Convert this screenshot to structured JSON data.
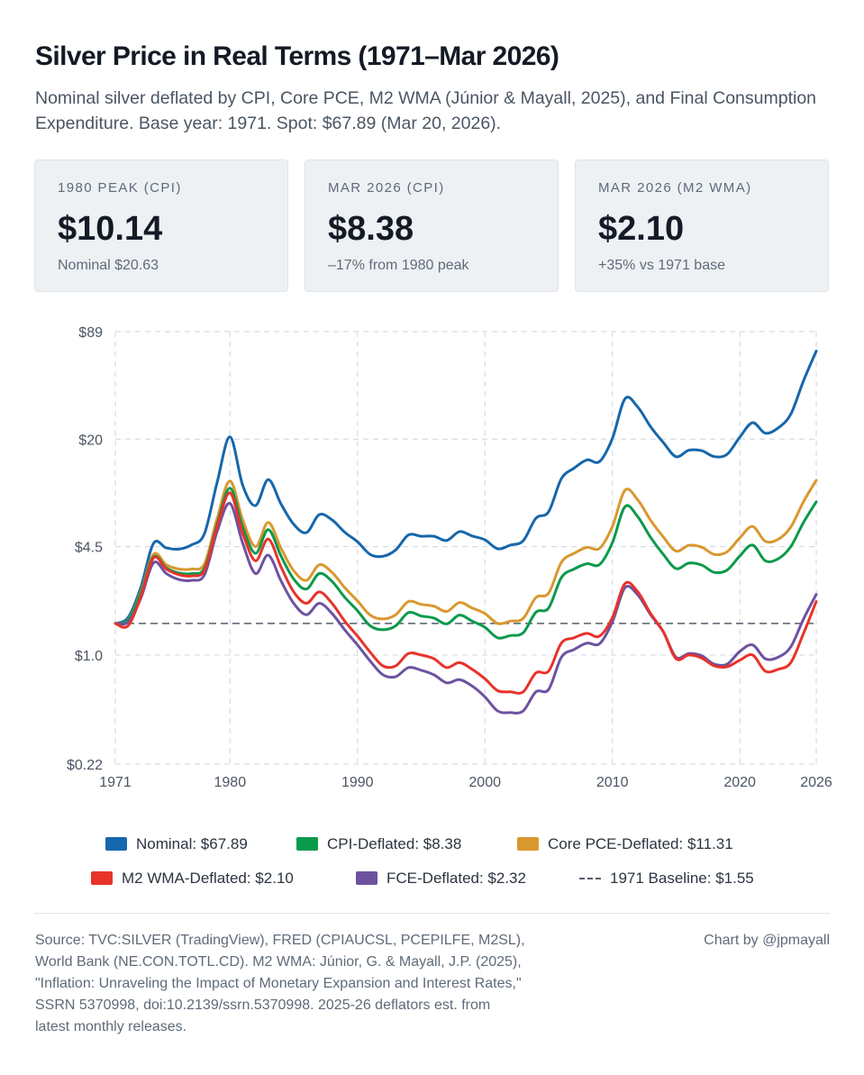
{
  "header": {
    "title": "Silver Price in Real Terms (1971–Mar 2026)",
    "subtitle": "Nominal silver deflated by CPI, Core PCE, M2 WMA (Júnior & Mayall, 2025), and Final Consumption Expenditure. Base year: 1971. Spot: $67.89 (Mar 20, 2026)."
  },
  "cards": [
    {
      "label": "1980 PEAK (CPI)",
      "value": "$10.14",
      "note": "Nominal $20.63"
    },
    {
      "label": "MAR 2026 (CPI)",
      "value": "$8.38",
      "note": "–17% from 1980 peak"
    },
    {
      "label": "MAR 2026 (M2 WMA)",
      "value": "$2.10",
      "note": "+35% vs 1971 base"
    }
  ],
  "colors": {
    "nominal": "#1667ab",
    "cpi": "#0b9a4b",
    "core_pce": "#d9982e",
    "m2_wma": "#e8332a",
    "fce": "#6d52a0",
    "baseline": "#555e69",
    "grid": "#d6dde5"
  },
  "chart_data": {
    "type": "line",
    "title": "Silver Price in Real Terms (1971–Mar 2026)",
    "xlabel": "",
    "ylabel": "",
    "y_scale": "log",
    "ylim": [
      0.22,
      89
    ],
    "xlim": [
      1971,
      2026
    ],
    "y_ticks": [
      0.22,
      1.0,
      4.5,
      20,
      89
    ],
    "y_tick_labels": [
      "$0.22",
      "$1.0",
      "$4.5",
      "$20",
      "$89"
    ],
    "x_ticks": [
      1971,
      1980,
      1990,
      2000,
      2010,
      2020,
      2026
    ],
    "x_tick_labels": [
      "1971",
      "1980",
      "1990",
      "2000",
      "2010",
      "2020",
      "2026"
    ],
    "grid": true,
    "legend_position": "bottom",
    "baseline": {
      "name": "1971 Baseline",
      "value": 1.55,
      "label": "1971 Baseline: $1.55"
    },
    "series": [
      {
        "name": "Nominal",
        "label": "Nominal: $67.89",
        "color_key": "nominal",
        "x": [
          1971,
          1972,
          1973,
          1974,
          1975,
          1976,
          1977,
          1978,
          1979,
          1980,
          1981,
          1982,
          1983,
          1984,
          1985,
          1986,
          1987,
          1988,
          1989,
          1990,
          1991,
          1992,
          1993,
          1994,
          1995,
          1996,
          1997,
          1998,
          1999,
          2000,
          2001,
          2002,
          2003,
          2004,
          2005,
          2006,
          2007,
          2008,
          2009,
          2010,
          2011,
          2012,
          2013,
          2014,
          2015,
          2016,
          2017,
          2018,
          2019,
          2020,
          2021,
          2022,
          2023,
          2024,
          2025,
          2026
        ],
        "y": [
          1.55,
          1.68,
          2.56,
          4.71,
          4.42,
          4.35,
          4.62,
          5.4,
          11.1,
          20.63,
          10.5,
          7.95,
          11.4,
          8.14,
          6.14,
          5.47,
          7.01,
          6.53,
          5.5,
          4.82,
          4.04,
          3.94,
          4.3,
          5.29,
          5.2,
          5.2,
          4.9,
          5.54,
          5.22,
          4.95,
          4.37,
          4.6,
          4.88,
          6.67,
          7.31,
          11.55,
          13.38,
          14.99,
          14.67,
          20.19,
          35.12,
          31.15,
          23.79,
          19.08,
          15.68,
          17.14,
          17.05,
          15.71,
          16.21,
          20.55,
          25.14,
          21.73,
          23.35,
          28.27,
          45.0,
          67.89
        ]
      },
      {
        "name": "CPI-Deflated",
        "label": "CPI-Deflated: $8.38",
        "color_key": "cpi",
        "x": [
          1971,
          1972,
          1973,
          1974,
          1975,
          1976,
          1977,
          1978,
          1979,
          1980,
          1981,
          1982,
          1983,
          1984,
          1985,
          1986,
          1987,
          1988,
          1989,
          1990,
          1991,
          1992,
          1993,
          1994,
          1995,
          1996,
          1997,
          1998,
          1999,
          2000,
          2001,
          2002,
          2003,
          2004,
          2005,
          2006,
          2007,
          2008,
          2009,
          2010,
          2011,
          2012,
          2013,
          2014,
          2015,
          2016,
          2017,
          2018,
          2019,
          2020,
          2021,
          2022,
          2023,
          2024,
          2025,
          2026
        ],
        "y": [
          1.55,
          1.62,
          2.35,
          3.9,
          3.35,
          3.12,
          3.1,
          3.35,
          6.2,
          10.14,
          5.9,
          4.1,
          5.7,
          3.95,
          2.87,
          2.5,
          3.1,
          2.78,
          2.23,
          1.85,
          1.5,
          1.42,
          1.5,
          1.8,
          1.72,
          1.67,
          1.54,
          1.74,
          1.6,
          1.47,
          1.27,
          1.31,
          1.36,
          1.81,
          1.92,
          2.93,
          3.3,
          3.55,
          3.51,
          4.75,
          7.85,
          6.8,
          5.12,
          4.04,
          3.32,
          3.58,
          3.49,
          3.15,
          3.25,
          3.95,
          4.6,
          3.7,
          3.8,
          4.5,
          6.3,
          8.38
        ]
      },
      {
        "name": "Core PCE-Deflated",
        "label": "Core PCE-Deflated: $11.31",
        "color_key": "core_pce",
        "x": [
          1971,
          1972,
          1973,
          1974,
          1975,
          1976,
          1977,
          1978,
          1979,
          1980,
          1981,
          1982,
          1983,
          1984,
          1985,
          1986,
          1987,
          1988,
          1989,
          1990,
          1991,
          1992,
          1993,
          1994,
          1995,
          1996,
          1997,
          1998,
          1999,
          2000,
          2001,
          2002,
          2003,
          2004,
          2005,
          2006,
          2007,
          2008,
          2009,
          2010,
          2011,
          2012,
          2013,
          2014,
          2015,
          2016,
          2017,
          2018,
          2019,
          2020,
          2021,
          2022,
          2023,
          2024,
          2025,
          2026
        ],
        "y": [
          1.55,
          1.63,
          2.4,
          4.05,
          3.5,
          3.3,
          3.3,
          3.55,
          6.7,
          11.2,
          6.5,
          4.5,
          6.3,
          4.4,
          3.22,
          2.82,
          3.5,
          3.15,
          2.55,
          2.12,
          1.74,
          1.65,
          1.75,
          2.1,
          2.02,
          1.97,
          1.83,
          2.07,
          1.92,
          1.78,
          1.55,
          1.6,
          1.66,
          2.22,
          2.36,
          3.62,
          4.1,
          4.45,
          4.4,
          5.95,
          9.85,
          8.6,
          6.5,
          5.14,
          4.23,
          4.58,
          4.47,
          4.04,
          4.19,
          5.08,
          5.95,
          4.85,
          4.98,
          5.9,
          8.4,
          11.31
        ]
      },
      {
        "name": "M2 WMA-Deflated",
        "label": "M2 WMA-Deflated: $2.10",
        "color_key": "m2_wma",
        "x": [
          1971,
          1972,
          1973,
          1974,
          1975,
          1976,
          1977,
          1978,
          1979,
          1980,
          1981,
          1982,
          1983,
          1984,
          1985,
          1986,
          1987,
          1988,
          1989,
          1990,
          1991,
          1992,
          1993,
          1994,
          1995,
          1996,
          1997,
          1998,
          1999,
          2000,
          2001,
          2002,
          2003,
          2004,
          2005,
          2006,
          2007,
          2008,
          2009,
          2010,
          2011,
          2012,
          2013,
          2014,
          2015,
          2016,
          2017,
          2018,
          2019,
          2020,
          2021,
          2022,
          2023,
          2024,
          2025,
          2026
        ],
        "y": [
          1.55,
          1.5,
          2.25,
          3.85,
          3.3,
          3.05,
          3.0,
          3.25,
          6.0,
          9.5,
          5.4,
          3.7,
          5.0,
          3.4,
          2.4,
          2.05,
          2.4,
          2.05,
          1.6,
          1.3,
          1.04,
          0.86,
          0.86,
          1.02,
          1.0,
          0.95,
          0.84,
          0.9,
          0.82,
          0.72,
          0.61,
          0.6,
          0.6,
          0.78,
          0.8,
          1.18,
          1.27,
          1.35,
          1.3,
          1.68,
          2.7,
          2.4,
          1.78,
          1.38,
          0.95,
          1.0,
          0.96,
          0.86,
          0.85,
          0.93,
          1.0,
          0.8,
          0.82,
          0.9,
          1.35,
          2.1
        ]
      },
      {
        "name": "FCE-Deflated",
        "label": "FCE-Deflated: $2.32",
        "color_key": "fce",
        "x": [
          1971,
          1972,
          1973,
          1974,
          1975,
          1976,
          1977,
          1978,
          1979,
          1980,
          1981,
          1982,
          1983,
          1984,
          1985,
          1986,
          1987,
          1988,
          1989,
          1990,
          1991,
          1992,
          1993,
          1994,
          1995,
          1996,
          1997,
          1998,
          1999,
          2000,
          2001,
          2002,
          2003,
          2004,
          2005,
          2006,
          2007,
          2008,
          2009,
          2010,
          2011,
          2012,
          2013,
          2014,
          2015,
          2016,
          2017,
          2018,
          2019,
          2020,
          2021,
          2022,
          2023,
          2024,
          2025,
          2026
        ],
        "y": [
          1.55,
          1.58,
          2.2,
          3.6,
          3.1,
          2.85,
          2.82,
          3.05,
          5.6,
          8.2,
          4.7,
          3.1,
          4.0,
          2.8,
          2.05,
          1.75,
          2.05,
          1.78,
          1.42,
          1.15,
          0.92,
          0.76,
          0.74,
          0.84,
          0.81,
          0.76,
          0.68,
          0.71,
          0.65,
          0.56,
          0.46,
          0.45,
          0.46,
          0.6,
          0.62,
          0.97,
          1.08,
          1.18,
          1.17,
          1.58,
          2.55,
          2.3,
          1.75,
          1.38,
          0.97,
          1.02,
          0.99,
          0.88,
          0.88,
          1.05,
          1.15,
          0.95,
          0.97,
          1.12,
          1.65,
          2.32
        ]
      }
    ]
  },
  "footer": {
    "source_lines": [
      "Source: TVC:SILVER (TradingView), FRED (CPIAUCSL, PCEPILFE, M2SL),",
      "World Bank (NE.CON.TOTL.CD). M2 WMA: Júnior, G. & Mayall, J.P. (2025),",
      "\"Inflation: Unraveling the Impact of Monetary Expansion and Interest Rates,\"",
      "SSRN 5370998, doi:10.2139/ssrn.5370998. 2025-26 deflators est. from",
      "latest monthly releases."
    ],
    "credit": "Chart by @jpmayall"
  }
}
